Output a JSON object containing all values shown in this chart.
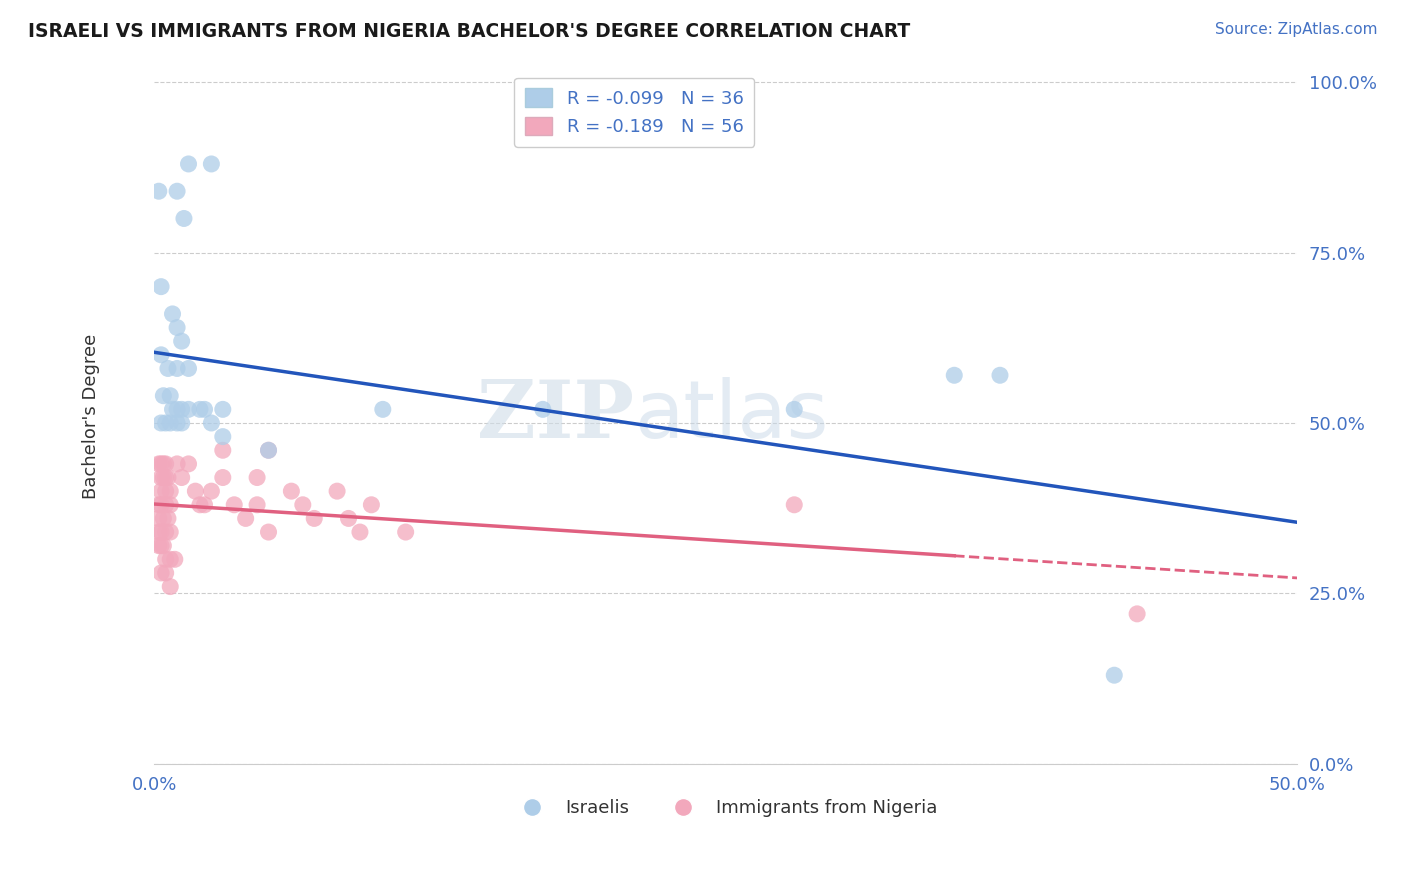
{
  "title": "ISRAELI VS IMMIGRANTS FROM NIGERIA BACHELOR'S DEGREE CORRELATION CHART",
  "source": "Source: ZipAtlas.com",
  "ylabel": "Bachelor's Degree",
  "legend_israeli": "R = -0.099   N = 36",
  "legend_nigeria": "R = -0.189   N = 56",
  "legend_label_israeli": "Israelis",
  "legend_label_nigeria": "Immigrants from Nigeria",
  "xmin": 0.0,
  "xmax": 0.5,
  "ymin": 0.0,
  "ymax": 1.02,
  "watermark_zip": "ZIP",
  "watermark_atlas": "atlas",
  "israeli_color": "#aecde8",
  "nigeria_color": "#f2a8bc",
  "trendline_israeli_color": "#2255bb",
  "trendline_nigeria_color": "#e06080",
  "background_color": "#ffffff",
  "grid_color": "#cccccc",
  "israeli_points": [
    [
      0.002,
      0.84
    ],
    [
      0.01,
      0.84
    ],
    [
      0.015,
      0.88
    ],
    [
      0.013,
      0.8
    ],
    [
      0.025,
      0.88
    ],
    [
      0.003,
      0.7
    ],
    [
      0.008,
      0.66
    ],
    [
      0.01,
      0.64
    ],
    [
      0.012,
      0.62
    ],
    [
      0.003,
      0.6
    ],
    [
      0.006,
      0.58
    ],
    [
      0.01,
      0.58
    ],
    [
      0.015,
      0.58
    ],
    [
      0.004,
      0.54
    ],
    [
      0.007,
      0.54
    ],
    [
      0.008,
      0.52
    ],
    [
      0.01,
      0.52
    ],
    [
      0.012,
      0.52
    ],
    [
      0.015,
      0.52
    ],
    [
      0.003,
      0.5
    ],
    [
      0.005,
      0.5
    ],
    [
      0.007,
      0.5
    ],
    [
      0.01,
      0.5
    ],
    [
      0.012,
      0.5
    ],
    [
      0.02,
      0.52
    ],
    [
      0.022,
      0.52
    ],
    [
      0.025,
      0.5
    ],
    [
      0.03,
      0.48
    ],
    [
      0.03,
      0.52
    ],
    [
      0.05,
      0.46
    ],
    [
      0.1,
      0.52
    ],
    [
      0.17,
      0.52
    ],
    [
      0.28,
      0.52
    ],
    [
      0.35,
      0.57
    ],
    [
      0.37,
      0.57
    ],
    [
      0.42,
      0.13
    ]
  ],
  "nigeria_points": [
    [
      0.002,
      0.44
    ],
    [
      0.003,
      0.44
    ],
    [
      0.004,
      0.44
    ],
    [
      0.005,
      0.44
    ],
    [
      0.003,
      0.42
    ],
    [
      0.004,
      0.42
    ],
    [
      0.005,
      0.42
    ],
    [
      0.006,
      0.42
    ],
    [
      0.003,
      0.4
    ],
    [
      0.005,
      0.4
    ],
    [
      0.007,
      0.4
    ],
    [
      0.002,
      0.38
    ],
    [
      0.003,
      0.38
    ],
    [
      0.005,
      0.38
    ],
    [
      0.007,
      0.38
    ],
    [
      0.002,
      0.36
    ],
    [
      0.004,
      0.36
    ],
    [
      0.006,
      0.36
    ],
    [
      0.002,
      0.34
    ],
    [
      0.003,
      0.34
    ],
    [
      0.005,
      0.34
    ],
    [
      0.007,
      0.34
    ],
    [
      0.002,
      0.32
    ],
    [
      0.003,
      0.32
    ],
    [
      0.004,
      0.32
    ],
    [
      0.005,
      0.3
    ],
    [
      0.007,
      0.3
    ],
    [
      0.009,
      0.3
    ],
    [
      0.003,
      0.28
    ],
    [
      0.005,
      0.28
    ],
    [
      0.007,
      0.26
    ],
    [
      0.01,
      0.44
    ],
    [
      0.012,
      0.42
    ],
    [
      0.015,
      0.44
    ],
    [
      0.018,
      0.4
    ],
    [
      0.02,
      0.38
    ],
    [
      0.022,
      0.38
    ],
    [
      0.025,
      0.4
    ],
    [
      0.03,
      0.42
    ],
    [
      0.035,
      0.38
    ],
    [
      0.04,
      0.36
    ],
    [
      0.045,
      0.38
    ],
    [
      0.05,
      0.34
    ],
    [
      0.06,
      0.4
    ],
    [
      0.065,
      0.38
    ],
    [
      0.07,
      0.36
    ],
    [
      0.08,
      0.4
    ],
    [
      0.085,
      0.36
    ],
    [
      0.09,
      0.34
    ],
    [
      0.095,
      0.38
    ],
    [
      0.11,
      0.34
    ],
    [
      0.05,
      0.46
    ],
    [
      0.28,
      0.38
    ],
    [
      0.03,
      0.46
    ],
    [
      0.045,
      0.42
    ],
    [
      0.43,
      0.22
    ]
  ],
  "ytick_labels": [
    "0.0%",
    "25.0%",
    "50.0%",
    "75.0%",
    "100.0%"
  ],
  "ytick_values": [
    0.0,
    0.25,
    0.5,
    0.75,
    1.0
  ],
  "xtick_labels": [
    "0.0%",
    "50.0%"
  ],
  "xtick_values": [
    0.0,
    0.5
  ],
  "trendline_dash_start": 0.35
}
